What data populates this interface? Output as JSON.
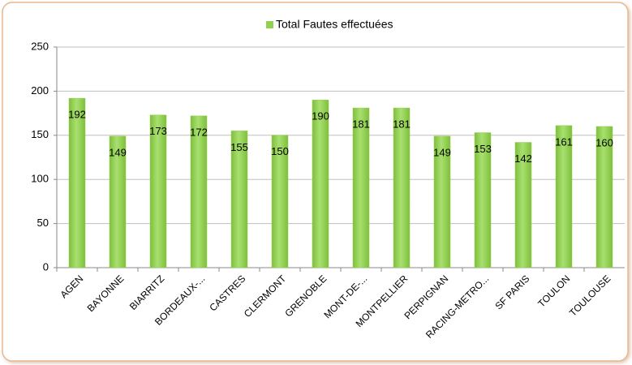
{
  "chart_data": {
    "type": "bar",
    "series": [
      {
        "name": "Total Fautes effectuées",
        "color": "#92d050",
        "values": [
          192,
          149,
          173,
          172,
          155,
          150,
          190,
          181,
          181,
          149,
          153,
          142,
          161,
          160
        ]
      }
    ],
    "categories": [
      "AGEN",
      "BAYONNE",
      "BIARRITZ",
      "BORDEAUX-...",
      "CASTRES",
      "CLERMONT",
      "GRENOBLE",
      "MONT-DE-...",
      "MONTPELLIER",
      "PERPIGNAN",
      "RACING-METRO...",
      "SF PARIS",
      "TOULON",
      "TOULOUSE"
    ],
    "ylim": [
      0,
      250
    ],
    "yticks": [
      0,
      50,
      100,
      150,
      200,
      250
    ],
    "grid": true,
    "legend": "top"
  }
}
